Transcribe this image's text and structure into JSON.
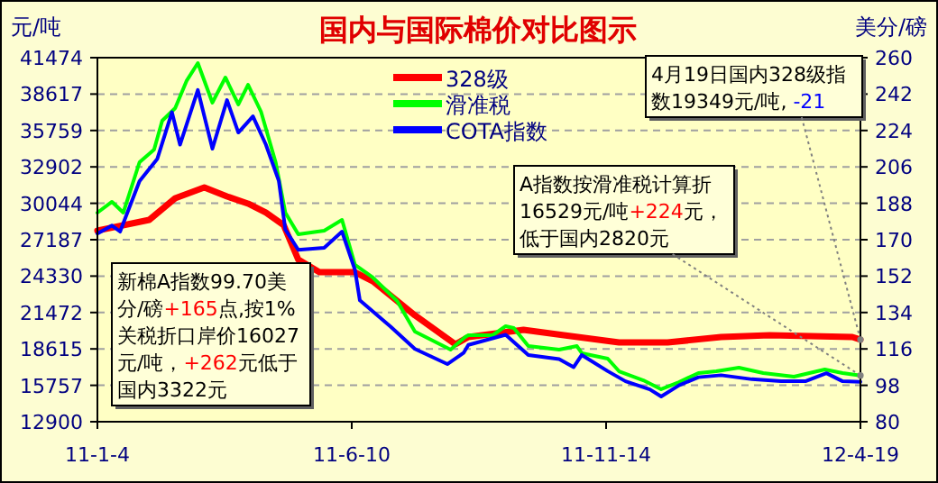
{
  "chart_data": {
    "type": "line",
    "title": "国内与国际棉价对比图示",
    "ylabel": "元/吨",
    "y2label": "美分/磅",
    "xlim": [
      "2011-01-04",
      "2012-04-19"
    ],
    "xticks": [
      {
        "value": "2011-01-04",
        "label": "11-1-4"
      },
      {
        "value": "2011-06-10",
        "label": "11-6-10"
      },
      {
        "value": "2011-11-14",
        "label": "11-11-14"
      },
      {
        "value": "2012-04-19",
        "label": "12-4-19"
      }
    ],
    "ylim": [
      12900,
      41474
    ],
    "yticks": [
      12900,
      15757,
      18615,
      21472,
      24330,
      27187,
      30044,
      32902,
      35759,
      38617,
      41474
    ],
    "y2lim": [
      80,
      260
    ],
    "y2ticks": [
      80,
      98,
      116,
      134,
      152,
      170,
      188,
      206,
      224,
      242,
      260
    ],
    "grid": "y",
    "legend": "top",
    "series": [
      {
        "name": "328级",
        "color": "#ff0000",
        "x": [
          "2011-01-04",
          "2011-02-05",
          "2011-02-21",
          "2011-03-11",
          "2011-03-25",
          "2011-04-07",
          "2011-04-18",
          "2011-04-29",
          "2011-05-08",
          "2011-05-21",
          "2011-06-12",
          "2011-06-23",
          "2011-07-19",
          "2011-08-13",
          "2011-08-21",
          "2011-09-24",
          "2011-10-19",
          "2011-11-22",
          "2011-12-22",
          "2012-01-24",
          "2012-02-23",
          "2012-04-14",
          "2012-04-19"
        ],
        "values": [
          27900,
          28740,
          30440,
          31290,
          30580,
          30020,
          29310,
          28320,
          25630,
          24640,
          24640,
          23930,
          21250,
          18980,
          19550,
          20110,
          19690,
          19120,
          19120,
          19550,
          19690,
          19550,
          19349
        ]
      },
      {
        "name": "滑准税",
        "color": "#00ff00",
        "x": [
          "2011-01-04",
          "2011-01-13",
          "2011-01-20",
          "2011-01-30",
          "2011-02-08",
          "2011-02-13",
          "2011-02-21",
          "2011-02-28",
          "2011-03-07",
          "2011-03-16",
          "2011-03-24",
          "2011-04-01",
          "2011-04-07",
          "2011-04-15",
          "2011-04-24",
          "2011-04-30",
          "2011-05-08",
          "2011-05-24",
          "2011-06-04",
          "2011-06-12",
          "2011-06-23",
          "2011-07-08",
          "2011-07-19",
          "2011-08-10",
          "2011-08-19",
          "2011-08-21",
          "2011-09-05",
          "2011-09-13",
          "2011-09-18",
          "2011-09-27",
          "2011-10-16",
          "2011-10-27",
          "2011-10-30",
          "2011-11-15",
          "2011-11-22",
          "2011-12-07",
          "2011-12-18",
          "2011-12-29",
          "2012-01-10",
          "2012-01-21",
          "2012-02-04",
          "2012-02-19",
          "2012-03-09",
          "2012-03-28",
          "2012-04-08",
          "2012-04-19"
        ],
        "values": [
          29310,
          30160,
          29310,
          33270,
          34260,
          36520,
          37510,
          39640,
          41050,
          37940,
          39920,
          37800,
          39350,
          37230,
          33270,
          29310,
          27610,
          27900,
          28740,
          25210,
          24220,
          22380,
          19970,
          18560,
          19550,
          19690,
          19690,
          20400,
          20260,
          18840,
          18560,
          18840,
          18280,
          17850,
          16860,
          16150,
          15450,
          16010,
          16720,
          16860,
          17140,
          16720,
          16440,
          17000,
          16720,
          16529
        ]
      },
      {
        "name": "COTA指数",
        "color": "#0000ff",
        "axis": "y2",
        "x": [
          "2011-01-04",
          "2011-01-13",
          "2011-01-18",
          "2011-01-30",
          "2011-02-10",
          "2011-02-19",
          "2011-02-24",
          "2011-03-07",
          "2011-03-16",
          "2011-03-25",
          "2011-04-01",
          "2011-04-10",
          "2011-04-18",
          "2011-04-26",
          "2011-04-30",
          "2011-05-08",
          "2011-05-24",
          "2011-06-04",
          "2011-06-12",
          "2011-06-15",
          "2011-07-04",
          "2011-07-19",
          "2011-08-08",
          "2011-08-18",
          "2011-08-21",
          "2011-09-13",
          "2011-09-27",
          "2011-10-16",
          "2011-10-25",
          "2011-10-30",
          "2011-11-15",
          "2011-11-26",
          "2011-12-11",
          "2011-12-18",
          "2011-12-29",
          "2012-01-10",
          "2012-01-24",
          "2012-02-12",
          "2012-03-01",
          "2012-03-16",
          "2012-03-29",
          "2012-04-08",
          "2012-04-19"
        ],
        "values": [
          173,
          177,
          174,
          199,
          210,
          233,
          217,
          244,
          215,
          239,
          223,
          231,
          217,
          199,
          175,
          165,
          166,
          174,
          155,
          140,
          127,
          116,
          108.5,
          114,
          118,
          123,
          113,
          111,
          107,
          113,
          105,
          100,
          96,
          92.5,
          98,
          102,
          103,
          101,
          100,
          100,
          104,
          100,
          99.7
        ]
      }
    ],
    "annotations": [
      {
        "text": "4月19日国内328级指数19349元/吨, -21",
        "x": "2012-04-19",
        "y": 19349
      },
      {
        "text": "A指数按滑准税计算折16529元/吨+224元，低于国内2820元",
        "x": "2012-04-19",
        "y": 16529
      },
      "新棉A指数99.70美分/磅+165点,按1% 关税折口岸价16027元/吨，+262元低于国内3322元"
    ]
  }
}
